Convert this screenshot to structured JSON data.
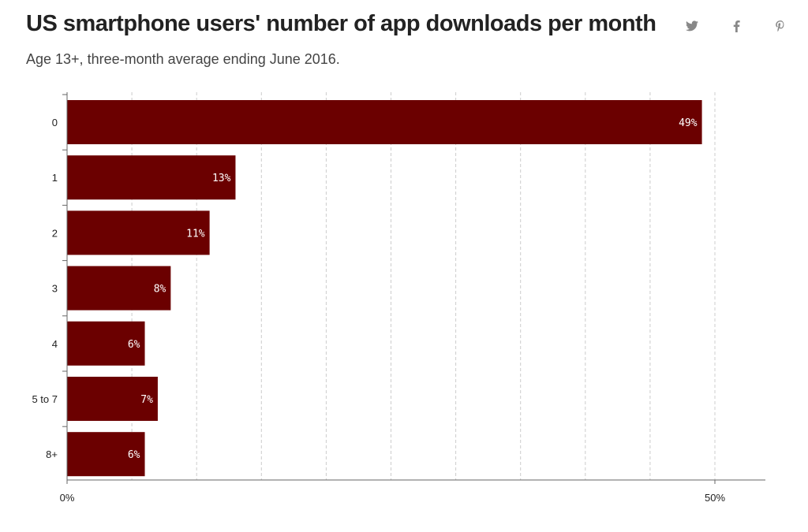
{
  "header": {
    "title": "US smartphone users' number of app downloads per month",
    "subtitle": "Age 13+, three-month average ending June 2016."
  },
  "share_icons": [
    {
      "name": "twitter-icon"
    },
    {
      "name": "facebook-icon"
    },
    {
      "name": "pinterest-icon"
    }
  ],
  "colors": {
    "bar": "#6b0000",
    "icon": "#888888",
    "grid": "#cccccc",
    "axis": "#666666"
  },
  "chart_data": {
    "type": "bar",
    "orientation": "horizontal",
    "categories": [
      "0",
      "1",
      "2",
      "3",
      "4",
      "5 to 7",
      "8+"
    ],
    "values": [
      49,
      13,
      11,
      8,
      6,
      7,
      6
    ],
    "value_labels": [
      "49%",
      "13%",
      "11%",
      "8%",
      "6%",
      "7%",
      "6%"
    ],
    "xlim": [
      0,
      50
    ],
    "x_tick_labels": [
      "0%",
      "50%"
    ],
    "grid": true,
    "title": "US smartphone users' number of app downloads per month",
    "subtitle": "Age 13+, three-month average ending June 2016."
  }
}
